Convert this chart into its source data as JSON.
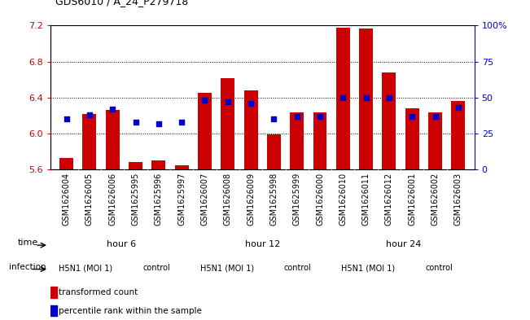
{
  "title": "GDS6010 / A_24_P279718",
  "samples": [
    "GSM1626004",
    "GSM1626005",
    "GSM1626006",
    "GSM1625995",
    "GSM1625996",
    "GSM1625997",
    "GSM1626007",
    "GSM1626008",
    "GSM1626009",
    "GSM1625998",
    "GSM1625999",
    "GSM1626000",
    "GSM1626010",
    "GSM1626011",
    "GSM1626012",
    "GSM1626001",
    "GSM1626002",
    "GSM1626003"
  ],
  "bar_values": [
    5.73,
    6.22,
    6.26,
    5.68,
    5.7,
    5.65,
    6.45,
    6.62,
    6.48,
    5.99,
    6.24,
    6.24,
    7.18,
    7.17,
    6.68,
    6.28,
    6.24,
    6.36
  ],
  "dot_values": [
    35,
    38,
    42,
    33,
    32,
    33,
    48,
    47,
    46,
    35,
    37,
    37,
    50,
    50,
    50,
    37,
    37,
    43
  ],
  "ylim": [
    5.6,
    7.2
  ],
  "y2lim": [
    0,
    100
  ],
  "yticks": [
    5.6,
    6.0,
    6.4,
    6.8,
    7.2
  ],
  "y2ticks": [
    0,
    25,
    50,
    75,
    100
  ],
  "bar_color": "#cc0000",
  "dot_color": "#0000cc",
  "grid_color": "#000000",
  "time_colors": [
    "#bbffbb",
    "#66ee66",
    "#33bb33"
  ],
  "time_labels": [
    "hour 6",
    "hour 12",
    "hour 24"
  ],
  "infection_color": "#dd88dd",
  "infection_labels": [
    "H5N1 (MOI 1)",
    "control",
    "H5N1 (MOI 1)",
    "control",
    "H5N1 (MOI 1)",
    "control"
  ],
  "legend_bar_label": "transformed count",
  "legend_dot_label": "percentile rank within the sample",
  "bar_color_left_axis": "#cc0000",
  "dot_color_right_axis": "#0000cc",
  "bg_color": "#ffffff",
  "xtick_bg_color": "#cccccc",
  "tick_label_fontsize": 7,
  "bar_width": 0.6
}
